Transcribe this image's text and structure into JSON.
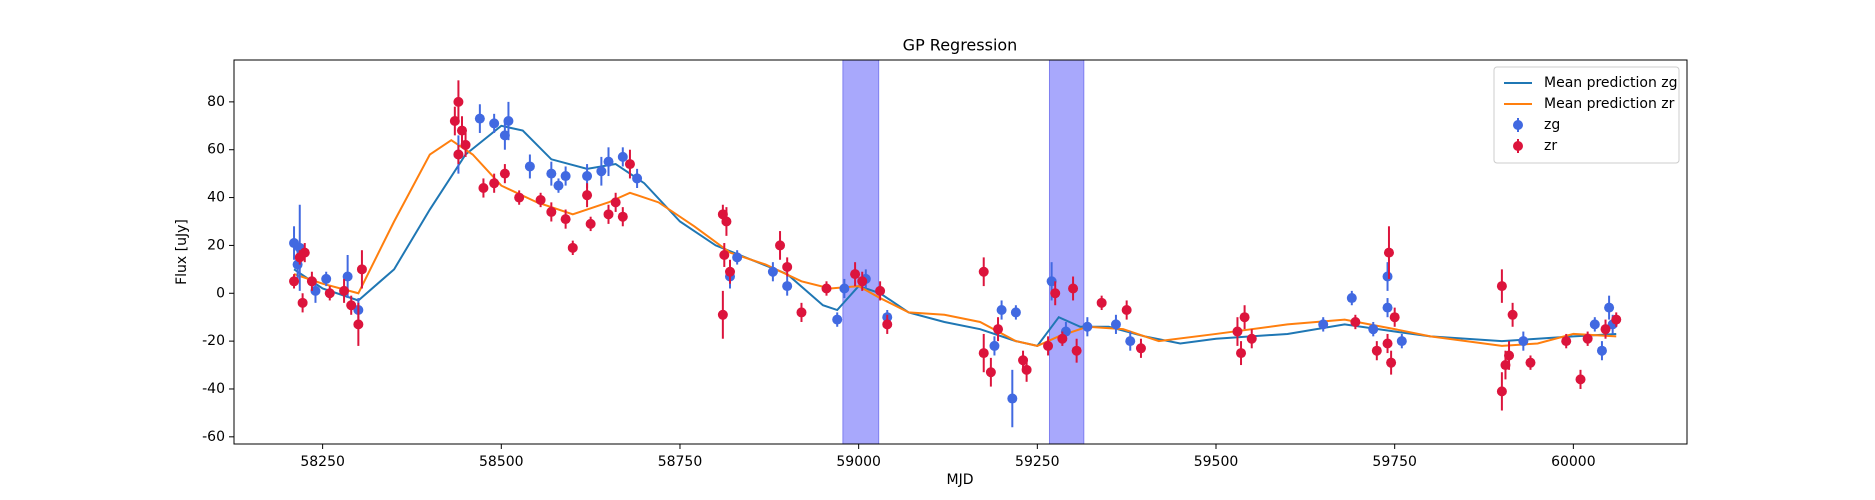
{
  "chart_data": {
    "type": "scatter",
    "title": "GP Regression",
    "x_label": "MJD",
    "y_label": "Flux [uJy]",
    "xlim": [
      58126,
      60159
    ],
    "ylim": [
      -63,
      97.5
    ],
    "xticks": [
      58250,
      58500,
      58750,
      59000,
      59250,
      59500,
      59750,
      60000
    ],
    "yticks": [
      -60,
      -40,
      -20,
      0,
      20,
      40,
      60,
      80
    ],
    "grid": false,
    "legend": "upper right",
    "spans": [
      {
        "x": [
          58978,
          59028
        ],
        "color": "#a8a8fc"
      },
      {
        "x": [
          59267,
          59315
        ],
        "color": "#a8a8fc"
      }
    ],
    "lines": [
      {
        "name": "Mean prediction zg",
        "color": "#1f77b4",
        "x": [
          58210,
          58250,
          58300,
          58350,
          58400,
          58450,
          58500,
          58530,
          58570,
          58620,
          58660,
          58700,
          58750,
          58800,
          58850,
          58900,
          58950,
          58970,
          59000,
          59030,
          59070,
          59120,
          59170,
          59220,
          59250,
          59280,
          59310,
          59350,
          59400,
          59450,
          59500,
          59600,
          59680,
          59750,
          59800,
          59900,
          60000,
          60060
        ],
        "values": [
          10,
          2,
          -3,
          10,
          35,
          58,
          70,
          68,
          56,
          52,
          54,
          46,
          30,
          20,
          14,
          8,
          -5,
          -7,
          3,
          0,
          -8,
          -12,
          -15,
          -20,
          -22,
          -10,
          -14,
          -14,
          -18,
          -21,
          -19,
          -17,
          -13,
          -16,
          -18,
          -20,
          -18,
          -17
        ]
      },
      {
        "name": "Mean prediction zr",
        "color": "#ff7f0e",
        "x": [
          58210,
          58250,
          58300,
          58350,
          58400,
          58430,
          58460,
          58500,
          58550,
          58600,
          58650,
          58680,
          58720,
          58770,
          58820,
          58870,
          58920,
          58960,
          59000,
          59030,
          59070,
          59120,
          59170,
          59220,
          59250,
          59280,
          59320,
          59370,
          59420,
          59500,
          59600,
          59680,
          59750,
          59800,
          59900,
          59950,
          60000,
          60060
        ],
        "values": [
          8,
          4,
          0,
          30,
          58,
          64,
          58,
          45,
          38,
          33,
          38,
          42,
          38,
          28,
          17,
          12,
          5,
          2,
          3,
          -2,
          -8,
          -9,
          -12,
          -20,
          -22,
          -18,
          -14,
          -15,
          -20,
          -17,
          -13,
          -11,
          -15,
          -18,
          -22,
          -21,
          -17,
          -18
        ]
      }
    ],
    "points": [
      {
        "name": "zg",
        "color": "#4169e1",
        "x": [
          58210,
          58215,
          58218,
          58240,
          58255,
          58285,
          58300,
          58440,
          58470,
          58490,
          58510,
          58505,
          58540,
          58570,
          58580,
          58590,
          58620,
          58640,
          58650,
          58670,
          58690,
          58830,
          58820,
          58880,
          58900,
          58970,
          58980,
          59010,
          59040,
          59190,
          59200,
          59215,
          59220,
          59270,
          59290,
          59320,
          59360,
          59380,
          59650,
          59690,
          59720,
          59740,
          59740,
          59760,
          59930,
          60030,
          60040,
          60050,
          60055
        ],
        "values": [
          21,
          12,
          19,
          1,
          6,
          7,
          -7,
          58,
          73,
          71,
          72,
          66,
          53,
          50,
          45,
          49,
          49,
          51,
          55,
          57,
          48,
          15,
          7,
          9,
          3,
          -11,
          2,
          6,
          -10,
          -22,
          -7,
          -44,
          -8,
          5,
          -16,
          -14,
          -13,
          -20,
          -13,
          -2,
          -15,
          7,
          -6,
          -20,
          -20,
          -13,
          -24,
          -6,
          -13
        ],
        "errors": [
          7,
          6,
          18,
          5,
          3,
          9,
          5,
          8,
          6,
          4,
          8,
          6,
          5,
          5,
          3,
          4,
          5,
          6,
          6,
          4,
          4,
          3,
          5,
          4,
          4,
          3,
          4,
          4,
          3,
          4,
          4,
          12,
          3,
          8,
          4,
          4,
          4,
          4,
          3,
          3,
          3,
          6,
          4,
          3,
          4,
          3,
          4,
          5,
          4
        ]
      },
      {
        "name": "zr",
        "color": "#dc143c",
        "x": [
          58210,
          58218,
          58225,
          58222,
          58235,
          58260,
          58280,
          58290,
          58300,
          58305,
          58435,
          58440,
          58445,
          58440,
          58450,
          58475,
          58490,
          58505,
          58525,
          58555,
          58570,
          58590,
          58600,
          58620,
          58625,
          58650,
          58660,
          58670,
          58680,
          58810,
          58810,
          58815,
          58812,
          58820,
          58890,
          58900,
          58920,
          58955,
          58995,
          59005,
          59030,
          59040,
          59175,
          59175,
          59185,
          59195,
          59230,
          59235,
          59265,
          59275,
          59285,
          59300,
          59305,
          59340,
          59375,
          59395,
          59530,
          59535,
          59540,
          59550,
          59695,
          59725,
          59740,
          59742,
          59745,
          59750,
          59900,
          59900,
          59905,
          59910,
          59915,
          59940,
          59990,
          60010,
          60020,
          60045,
          60060
        ],
        "values": [
          5,
          15,
          17,
          -4,
          5,
          0,
          1,
          -5,
          -13,
          10,
          72,
          80,
          68,
          58,
          62,
          44,
          46,
          50,
          40,
          39,
          34,
          31,
          19,
          41,
          29,
          33,
          38,
          32,
          54,
          33,
          -9,
          30,
          16,
          9,
          20,
          11,
          -8,
          2,
          8,
          5,
          1,
          -13,
          9,
          -25,
          -33,
          -15,
          -28,
          -32,
          -22,
          0,
          -19,
          2,
          -24,
          -4,
          -7,
          -23,
          -16,
          -25,
          -10,
          -19,
          -12,
          -24,
          -21,
          17,
          -29,
          -10,
          3,
          -41,
          -30,
          -26,
          -9,
          -29,
          -20,
          -36,
          -19,
          -15,
          -11
        ],
        "errors": [
          3,
          3,
          4,
          4,
          4,
          3,
          5,
          4,
          9,
          8,
          6,
          9,
          6,
          4,
          5,
          4,
          4,
          4,
          3,
          3,
          4,
          4,
          3,
          5,
          3,
          4,
          4,
          4,
          6,
          4,
          10,
          6,
          5,
          5,
          6,
          4,
          4,
          3,
          5,
          4,
          4,
          4,
          6,
          8,
          6,
          5,
          4,
          5,
          4,
          5,
          3,
          5,
          5,
          3,
          4,
          4,
          6,
          5,
          5,
          4,
          3,
          4,
          4,
          11,
          5,
          4,
          7,
          8,
          6,
          6,
          5,
          3,
          3,
          4,
          3,
          4,
          3
        ]
      }
    ]
  }
}
